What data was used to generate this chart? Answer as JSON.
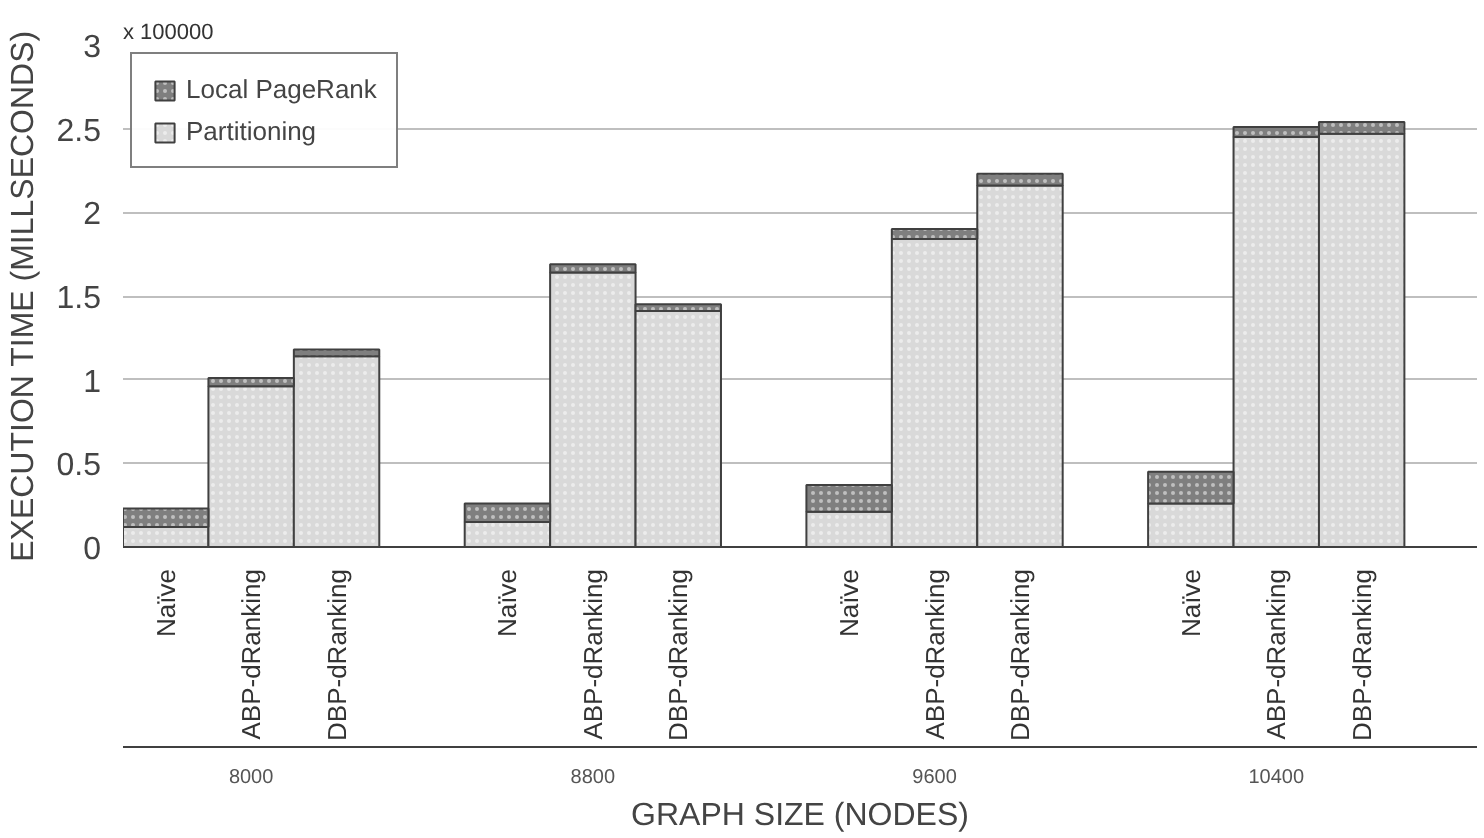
{
  "chart_data": {
    "type": "bar",
    "stacked": true,
    "xlabel": "GRAPH SIZE (NODES)",
    "ylabel": "EXECUTION TIME (MILLSECONDS)",
    "categories": [
      "Naïve",
      "ABP-dRanking",
      "DBP-dRanking",
      "Naïve",
      "ABP-dRanking",
      "DBP-dRanking",
      "Naïve",
      "ABP-dRanking",
      "DBP-dRanking",
      "Naïve",
      "ABP-dRanking",
      "DBP-dRanking"
    ],
    "series": [
      {
        "name": "Partitioning",
        "color": "#d9d9d9",
        "values": [
          0.12,
          0.96,
          1.14,
          0.15,
          1.64,
          1.41,
          0.21,
          1.84,
          2.16,
          0.26,
          2.45,
          2.47
        ]
      },
      {
        "name": "Local PageRank",
        "color": "#7f7f7f",
        "values": [
          0.11,
          0.05,
          0.04,
          0.11,
          0.05,
          0.04,
          0.16,
          0.06,
          0.07,
          0.19,
          0.06,
          0.07
        ]
      }
    ],
    "annotations": [
      "x 100000",
      "8000",
      "8800",
      "9600",
      "10400"
    ],
    "ylim": [
      0,
      3
    ],
    "yticks": [
      0,
      0.5,
      1,
      1.5,
      2,
      2.5,
      3
    ],
    "grid": "y",
    "legend": "top left"
  }
}
